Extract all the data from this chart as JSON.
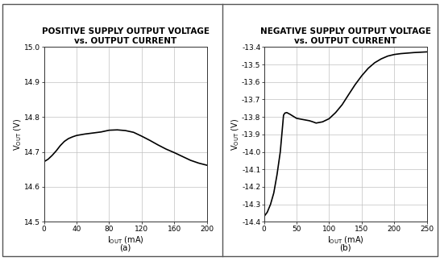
{
  "plot_a": {
    "title_line1": "POSITIVE SUPPLY OUTPUT VOLTAGE",
    "title_line2": "vs. OUTPUT CURRENT",
    "xlim": [
      0,
      200
    ],
    "ylim": [
      14.5,
      15.0
    ],
    "xticks": [
      0,
      40,
      80,
      120,
      160,
      200
    ],
    "yticks": [
      14.5,
      14.6,
      14.7,
      14.8,
      14.9,
      15.0
    ],
    "x": [
      0,
      5,
      10,
      15,
      20,
      25,
      30,
      35,
      40,
      50,
      60,
      70,
      80,
      90,
      100,
      110,
      120,
      130,
      140,
      150,
      160,
      170,
      180,
      190,
      200
    ],
    "y": [
      14.672,
      14.679,
      14.69,
      14.703,
      14.718,
      14.73,
      14.738,
      14.743,
      14.747,
      14.751,
      14.754,
      14.757,
      14.762,
      14.763,
      14.761,
      14.756,
      14.745,
      14.733,
      14.72,
      14.708,
      14.698,
      14.687,
      14.676,
      14.668,
      14.662
    ],
    "subtitle": "(a)"
  },
  "plot_b": {
    "title_line1": "NEGATIVE SUPPLY OUTPUT VOLTAGE",
    "title_line2": "vs. OUTPUT CURRENT",
    "xlim": [
      0,
      250
    ],
    "ylim": [
      -14.4,
      -13.4
    ],
    "xticks": [
      0,
      50,
      100,
      150,
      200,
      250
    ],
    "yticks": [
      -14.4,
      -14.3,
      -14.2,
      -14.1,
      -14.0,
      -13.9,
      -13.8,
      -13.7,
      -13.6,
      -13.5,
      -13.4
    ],
    "x": [
      0,
      5,
      10,
      15,
      20,
      25,
      28,
      30,
      32,
      35,
      40,
      50,
      60,
      70,
      75,
      80,
      90,
      100,
      110,
      120,
      130,
      140,
      150,
      160,
      170,
      180,
      190,
      200,
      210,
      220,
      230,
      240,
      250
    ],
    "y": [
      -14.37,
      -14.345,
      -14.3,
      -14.235,
      -14.13,
      -14.0,
      -13.875,
      -13.79,
      -13.778,
      -13.775,
      -13.785,
      -13.808,
      -13.815,
      -13.822,
      -13.828,
      -13.835,
      -13.828,
      -13.81,
      -13.775,
      -13.73,
      -13.672,
      -13.615,
      -13.565,
      -13.522,
      -13.49,
      -13.468,
      -13.452,
      -13.443,
      -13.438,
      -13.435,
      -13.432,
      -13.43,
      -13.428
    ],
    "subtitle": "(b)"
  },
  "line_color": "#000000",
  "line_width": 1.2,
  "grid_color": "#c0c0c0",
  "bg_color": "#ffffff",
  "outer_border_color": "#888888",
  "title_fontsize": 7.5,
  "label_fontsize": 7.0,
  "tick_fontsize": 6.5,
  "subtitle_fontsize": 7.5
}
